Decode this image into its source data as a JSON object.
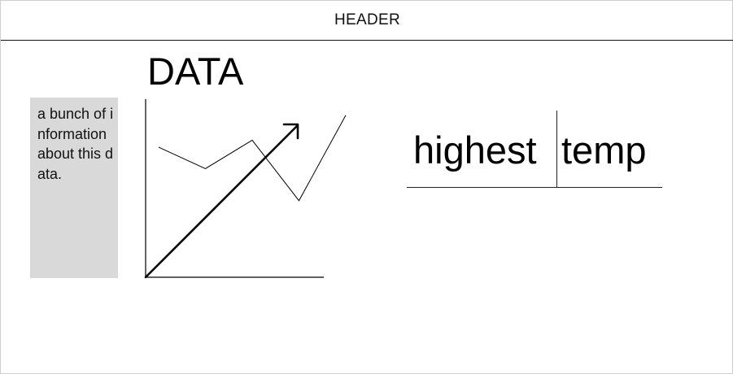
{
  "header": {
    "title": "HEADER"
  },
  "main": {
    "title": "DATA",
    "info_text": "a bunch of information about this data.",
    "stat": {
      "label": "highest",
      "value": "temp"
    }
  },
  "chart_data": {
    "type": "line",
    "title": "",
    "xlabel": "",
    "ylabel": "",
    "series": [
      {
        "values": [
          0.73,
          0.61,
          0.77,
          0.43,
          0.91
        ]
      }
    ],
    "trend_arrow": true,
    "grid": false,
    "legend": "none"
  },
  "colors": {
    "text": "#111111",
    "info_box_bg": "#d9d9d9",
    "line": "#000000"
  },
  "icons": {
    "trend": "arrow-up-right-icon"
  }
}
